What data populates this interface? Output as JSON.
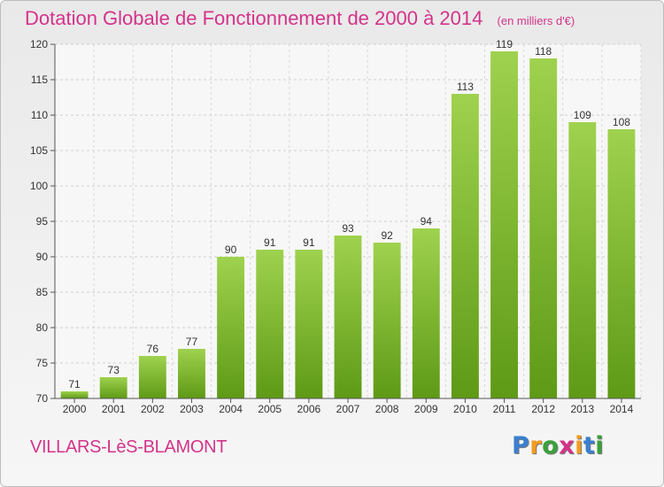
{
  "header": {
    "title": "Dotation Globale de Fonctionnement de 2000 à 2014",
    "unit": "(en milliers d'€)"
  },
  "footer": {
    "commune": "VILLARS-LèS-BLAMONT",
    "logo": [
      "P",
      "r",
      "o",
      "x",
      "i",
      "t",
      "i"
    ],
    "logo_colors": [
      "#3a7fd0",
      "#f39c1f",
      "#3aa03a",
      "#d4338a",
      "#f39c1f",
      "#3a7fd0",
      "#3aa03a"
    ]
  },
  "chart_data": {
    "type": "bar",
    "title": "Dotation Globale de Fonctionnement de 2000 à 2014",
    "categories": [
      "2000",
      "2001",
      "2002",
      "2003",
      "2004",
      "2005",
      "2006",
      "2007",
      "2008",
      "2009",
      "2010",
      "2011",
      "2012",
      "2013",
      "2014"
    ],
    "values": [
      71,
      73,
      76,
      77,
      90,
      91,
      91,
      93,
      92,
      94,
      113,
      119,
      118,
      109,
      108
    ],
    "ylim": [
      70,
      120
    ],
    "yticks": [
      70,
      75,
      80,
      85,
      90,
      95,
      100,
      105,
      110,
      115,
      120
    ],
    "xlabel": "",
    "ylabel": "",
    "grid": true,
    "bar_color_top": "#9fd24e",
    "bar_color_bottom": "#5e9a16"
  }
}
